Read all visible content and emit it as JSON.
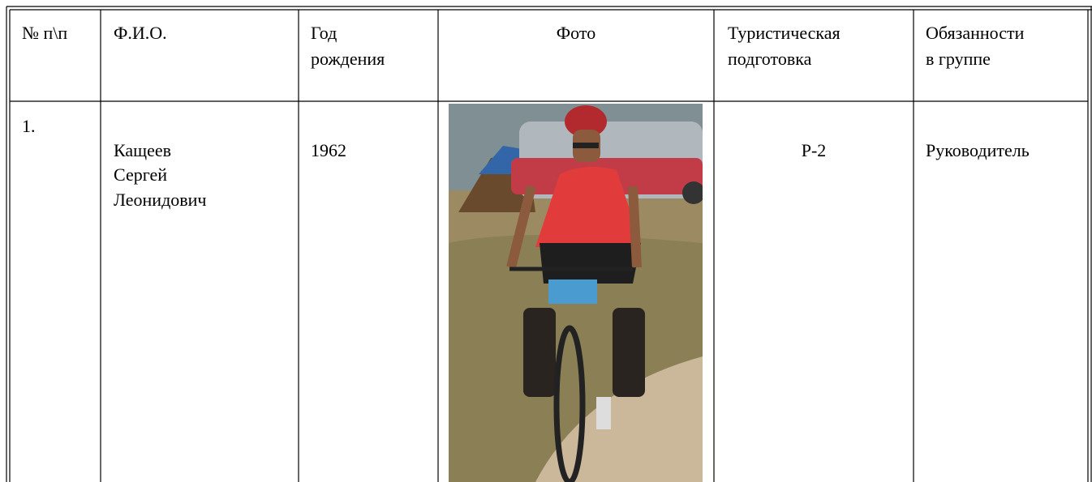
{
  "table": {
    "header": [
      [
        "№ п\\п"
      ],
      [
        "Ф.И.О."
      ],
      [
        "Год",
        "рождения"
      ],
      [
        "Фото"
      ],
      [
        "Туристическая",
        "подготовка"
      ],
      [
        "Обязанности",
        "в группе"
      ]
    ],
    "rows": [
      [
        [
          "1."
        ],
        [
          "Кащеев",
          "Сергей",
          "Леонидович"
        ],
        [
          "1962"
        ],
        [],
        [
          "Р-2"
        ],
        [
          "Руководитель"
        ]
      ]
    ]
  }
}
